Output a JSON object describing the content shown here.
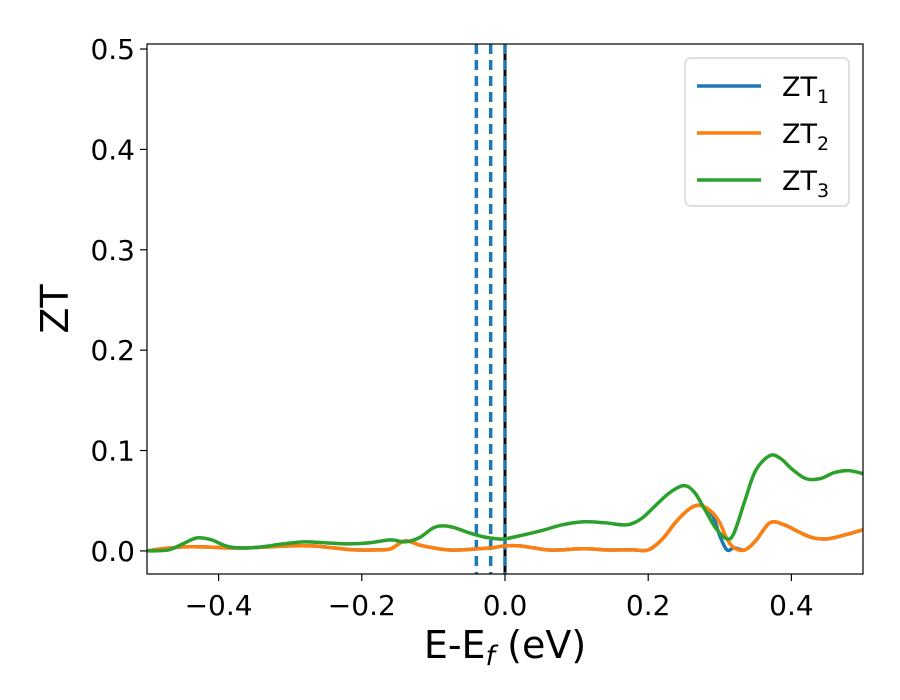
{
  "chart_data": {
    "type": "line",
    "xlabel": "E-E",
    "xlabel_sub": "f",
    "xlabel_unit": " (eV)",
    "ylabel": "ZT",
    "xlim": [
      -0.5,
      0.5
    ],
    "ylim": [
      -0.023,
      0.505
    ],
    "xticks": [
      -0.4,
      -0.2,
      0.0,
      0.2,
      0.4
    ],
    "xtick_labels": [
      "−0.4",
      "−0.2",
      "0.0",
      "0.2",
      "0.4"
    ],
    "yticks": [
      0.0,
      0.1,
      0.2,
      0.3,
      0.4,
      0.5
    ],
    "ytick_labels": [
      "0.0",
      "0.1",
      "0.2",
      "0.3",
      "0.4",
      "0.5"
    ],
    "grid": false,
    "legend_position": "top-right",
    "vertical_lines": [
      {
        "x": -0.04,
        "style": "dashed",
        "color": "#1f77b4"
      },
      {
        "x": -0.02,
        "style": "dashed",
        "color": "#1f77b4"
      },
      {
        "x": 0.0,
        "style": "solid",
        "color": "#000000"
      },
      {
        "x": 0.0,
        "style": "dashed",
        "color": "#1f77b4"
      }
    ],
    "series": [
      {
        "name": "ZT",
        "name_sub": "1",
        "color": "#1f77b4",
        "x": [
          -0.5,
          -0.48,
          -0.45,
          -0.42,
          -0.39,
          -0.36,
          -0.33,
          -0.3,
          -0.27,
          -0.24,
          -0.21,
          -0.18,
          -0.16,
          -0.14,
          -0.12,
          -0.1,
          -0.08,
          -0.06,
          -0.04,
          -0.02,
          0.0,
          0.02,
          0.04,
          0.06,
          0.08,
          0.1,
          0.12,
          0.14,
          0.16,
          0.18,
          0.2,
          0.22,
          0.24,
          0.26,
          0.275,
          0.29,
          0.3,
          0.31,
          0.32,
          0.335,
          0.35,
          0.37,
          0.39,
          0.41,
          0.43,
          0.45,
          0.47,
          0.5
        ],
        "y": [
          0.0,
          0.002,
          0.004,
          0.004,
          0.003,
          0.003,
          0.004,
          0.005,
          0.005,
          0.003,
          0.001,
          0.001,
          0.002,
          0.01,
          0.006,
          0.003,
          0.001,
          0.001,
          0.002,
          0.003,
          0.005,
          0.005,
          0.003,
          0.001,
          0.001,
          0.002,
          0.002,
          0.001,
          0.001,
          0.001,
          0.001,
          0.012,
          0.03,
          0.043,
          0.045,
          0.035,
          0.015,
          0.001,
          0.003,
          0.001,
          0.01,
          0.028,
          0.026,
          0.019,
          0.013,
          0.012,
          0.015,
          0.021
        ]
      },
      {
        "name": "ZT",
        "name_sub": "2",
        "color": "#ff7f0e",
        "x": [
          -0.5,
          -0.48,
          -0.45,
          -0.42,
          -0.39,
          -0.36,
          -0.33,
          -0.3,
          -0.27,
          -0.24,
          -0.21,
          -0.18,
          -0.16,
          -0.14,
          -0.12,
          -0.1,
          -0.08,
          -0.06,
          -0.04,
          -0.02,
          0.0,
          0.02,
          0.04,
          0.06,
          0.08,
          0.1,
          0.12,
          0.14,
          0.16,
          0.18,
          0.2,
          0.22,
          0.24,
          0.26,
          0.275,
          0.29,
          0.3,
          0.31,
          0.32,
          0.335,
          0.35,
          0.37,
          0.39,
          0.41,
          0.43,
          0.45,
          0.47,
          0.5
        ],
        "y": [
          0.0,
          0.002,
          0.004,
          0.004,
          0.003,
          0.003,
          0.004,
          0.005,
          0.005,
          0.003,
          0.001,
          0.001,
          0.002,
          0.01,
          0.006,
          0.003,
          0.001,
          0.001,
          0.002,
          0.003,
          0.005,
          0.005,
          0.003,
          0.001,
          0.001,
          0.002,
          0.002,
          0.001,
          0.001,
          0.001,
          0.001,
          0.012,
          0.03,
          0.043,
          0.045,
          0.038,
          0.028,
          0.012,
          0.003,
          0.001,
          0.01,
          0.028,
          0.026,
          0.019,
          0.013,
          0.012,
          0.015,
          0.021
        ]
      },
      {
        "name": "ZT",
        "name_sub": "3",
        "color": "#2ca02c",
        "x": [
          -0.5,
          -0.47,
          -0.45,
          -0.43,
          -0.41,
          -0.39,
          -0.37,
          -0.34,
          -0.31,
          -0.28,
          -0.25,
          -0.22,
          -0.19,
          -0.16,
          -0.14,
          -0.12,
          -0.1,
          -0.085,
          -0.07,
          -0.05,
          -0.03,
          -0.01,
          0.0,
          0.02,
          0.05,
          0.08,
          0.11,
          0.14,
          0.17,
          0.19,
          0.21,
          0.23,
          0.25,
          0.265,
          0.28,
          0.295,
          0.31,
          0.32,
          0.335,
          0.35,
          0.37,
          0.385,
          0.4,
          0.42,
          0.44,
          0.46,
          0.48,
          0.5
        ],
        "y": [
          0.0,
          0.001,
          0.007,
          0.013,
          0.011,
          0.005,
          0.003,
          0.004,
          0.007,
          0.009,
          0.008,
          0.007,
          0.008,
          0.011,
          0.009,
          0.013,
          0.023,
          0.025,
          0.023,
          0.018,
          0.014,
          0.012,
          0.012,
          0.015,
          0.02,
          0.026,
          0.029,
          0.028,
          0.026,
          0.032,
          0.045,
          0.058,
          0.065,
          0.058,
          0.04,
          0.022,
          0.012,
          0.018,
          0.05,
          0.08,
          0.095,
          0.092,
          0.082,
          0.072,
          0.072,
          0.078,
          0.08,
          0.077
        ]
      }
    ]
  }
}
